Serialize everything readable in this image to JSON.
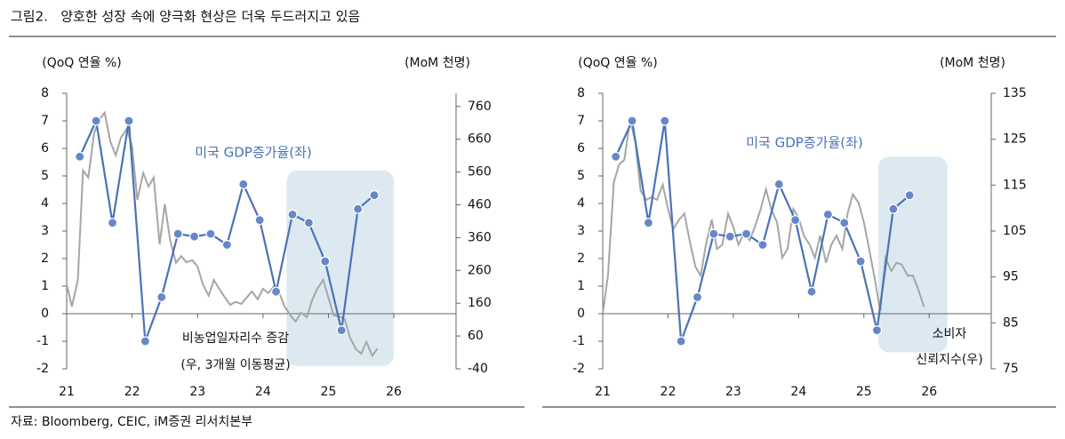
{
  "header": {
    "title": "그림2.   양호한 성장 속에 양극화 현상은 더욱 두드러지고 있음"
  },
  "chart_data": [
    {
      "type": "line",
      "ylabel": "(QoQ 연율 %)",
      "y2label": "(MoM 천명)",
      "xlim": [
        21,
        26.95
      ],
      "xticks": [
        21,
        22,
        23,
        24,
        25,
        26
      ],
      "ylim": [
        -2,
        8
      ],
      "yticks": [
        -2,
        -1,
        0,
        1,
        2,
        3,
        4,
        5,
        6,
        7,
        8
      ],
      "y2lim": [
        -40,
        800
      ],
      "y2ticks": [
        -40,
        60,
        160,
        260,
        360,
        460,
        560,
        660,
        760
      ],
      "highlight": {
        "x": [
          24.36,
          26.0
        ],
        "y": [
          5.2,
          -1.9
        ]
      },
      "series": [
        {
          "name": "미국 GDP증가율(좌)",
          "color": "#4a72b8",
          "marker": true,
          "x": [
            21.2,
            21.45,
            21.7,
            21.95,
            22.2,
            22.45,
            22.7,
            22.95,
            23.2,
            23.45,
            23.7,
            23.95,
            24.2,
            24.45,
            24.7,
            24.95,
            25.2,
            25.45,
            25.7
          ],
          "values": [
            5.7,
            7.0,
            3.3,
            7.0,
            -1.0,
            0.6,
            2.9,
            2.8,
            2.9,
            2.5,
            4.7,
            3.4,
            0.8,
            3.6,
            3.3,
            1.9,
            -0.6,
            3.8,
            4.3
          ]
        },
        {
          "name": [
            "비농업일자리수 증감",
            "(우, 3개월 이동평균)"
          ],
          "color": "#a6a6a6",
          "axis": "y2",
          "x": [
            21,
            21.08,
            21.17,
            21.25,
            21.33,
            21.42,
            21.5,
            21.58,
            21.67,
            21.75,
            21.83,
            21.92,
            22,
            22.08,
            22.17,
            22.25,
            22.33,
            22.42,
            22.5,
            22.58,
            22.67,
            22.75,
            22.83,
            22.92,
            23,
            23.08,
            23.17,
            23.25,
            23.33,
            23.42,
            23.5,
            23.58,
            23.67,
            23.75,
            23.83,
            23.92,
            24,
            24.08,
            24.17,
            24.25,
            24.33,
            24.42,
            24.5,
            24.58,
            24.67,
            24.75,
            24.83,
            24.92,
            25,
            25.08,
            25.17,
            25.25,
            25.33,
            25.42,
            25.5,
            25.58,
            25.67,
            25.75
          ],
          "values": [
            218,
            150,
            230,
            565,
            543,
            679,
            720,
            741,
            651,
            611,
            665,
            692,
            638,
            475,
            557,
            516,
            543,
            340,
            462,
            353,
            283,
            304,
            285,
            291,
            272,
            218,
            183,
            231,
            204,
            177,
            155,
            164,
            158,
            177,
            196,
            172,
            204,
            191,
            212,
            191,
            150,
            123,
            104,
            131,
            117,
            169,
            204,
            231,
            177,
            123,
            120,
            110,
            55,
            20,
            6,
            42,
            0,
            22
          ]
        }
      ]
    },
    {
      "type": "line",
      "ylabel": "(QoQ 연율 %)",
      "y2label": "(MoM 천명)",
      "xlim": [
        21,
        26.95
      ],
      "xticks": [
        21,
        22,
        23,
        24,
        25,
        26
      ],
      "ylim": [
        -2,
        8
      ],
      "yticks": [
        -2,
        -1,
        0,
        1,
        2,
        3,
        4,
        5,
        6,
        7,
        8
      ],
      "y2lim": [
        75,
        135
      ],
      "y2ticks": [
        75,
        85,
        95,
        105,
        115,
        125,
        135
      ],
      "highlight": {
        "x": [
          25.22,
          26.28
        ],
        "y": [
          5.7,
          -1.4
        ]
      },
      "series": [
        {
          "name": "미국 GDP증가율(좌)",
          "color": "#4a72b8",
          "marker": true,
          "x": [
            21.2,
            21.45,
            21.7,
            21.95,
            22.2,
            22.45,
            22.7,
            22.95,
            23.2,
            23.45,
            23.7,
            23.95,
            24.2,
            24.45,
            24.7,
            24.95,
            25.2,
            25.45,
            25.7
          ],
          "values": [
            5.7,
            7.0,
            3.3,
            7.0,
            -1.0,
            0.6,
            2.9,
            2.8,
            2.9,
            2.5,
            4.7,
            3.4,
            0.8,
            3.6,
            3.3,
            1.9,
            -0.6,
            3.8,
            4.3
          ]
        },
        {
          "name": [
            "소비자",
            "신뢰지수(우)"
          ],
          "color": "#a6a6a6",
          "axis": "y2",
          "x": [
            21,
            21.08,
            21.17,
            21.25,
            21.33,
            21.42,
            21.5,
            21.58,
            21.67,
            21.75,
            21.83,
            21.92,
            22,
            22.08,
            22.17,
            22.25,
            22.33,
            22.42,
            22.5,
            22.58,
            22.67,
            22.75,
            22.83,
            22.92,
            23,
            23.08,
            23.17,
            23.25,
            23.33,
            23.42,
            23.5,
            23.58,
            23.67,
            23.75,
            23.83,
            23.92,
            24,
            24.08,
            24.17,
            24.25,
            24.33,
            24.42,
            24.5,
            24.58,
            24.67,
            24.75,
            24.83,
            24.92,
            25,
            25.08,
            25.17,
            25.25,
            25.33,
            25.42,
            25.5,
            25.58,
            25.67,
            25.75,
            25.83,
            25.92
          ],
          "values": [
            87,
            95.3,
            115.6,
            119.5,
            120.5,
            129.2,
            124.4,
            113.8,
            111.8,
            112.4,
            111.8,
            115.1,
            109.8,
            105.4,
            107.5,
            108.8,
            103,
            97.2,
            95.3,
            102,
            107.5,
            101.1,
            102,
            108.8,
            105.9,
            102,
            104.9,
            103,
            105.9,
            109.8,
            114.1,
            109.8,
            106.9,
            99.2,
            101.1,
            109.8,
            107.9,
            104,
            102,
            99.2,
            104,
            98.1,
            102,
            104,
            101.1,
            108.8,
            113,
            111.1,
            106.9,
            101.1,
            94.3,
            87.6,
            99.2,
            96.3,
            98.1,
            97.7,
            95.3,
            95.3,
            92.4,
            88.5
          ]
        }
      ]
    }
  ],
  "footer": {
    "source": "자료: Bloomberg, CEIC, iM증권 리서치본부"
  }
}
